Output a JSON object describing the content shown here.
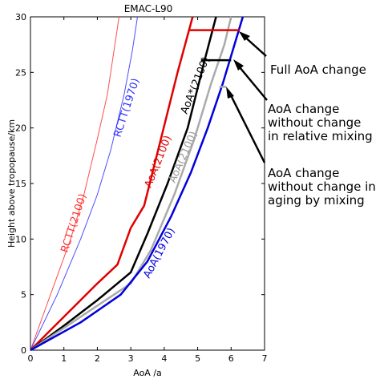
{
  "chart_data": {
    "type": "line",
    "title": "EMAC-L90",
    "xlabel": "AoA /a",
    "ylabel": "Height above tropopause/km",
    "xlim": [
      0,
      7
    ],
    "ylim": [
      0,
      30
    ],
    "xticks": [
      "0",
      "1",
      "2",
      "3",
      "4",
      "5",
      "6",
      "7"
    ],
    "yticks": [
      "0",
      "5",
      "10",
      "15",
      "20",
      "25",
      "30"
    ],
    "grid": false,
    "series": [
      {
        "name": "RCTT(2100)",
        "color": "#ff4d4d",
        "width": 1,
        "x": [
          0,
          0.6,
          1.2,
          1.6,
          2.0,
          2.3,
          2.5,
          2.65
        ],
        "y": [
          0,
          5,
          10,
          14,
          19,
          23,
          27,
          30
        ]
      },
      {
        "name": "RCTT(1970)",
        "color": "#4d4dff",
        "width": 1,
        "x": [
          0,
          0.8,
          1.5,
          2.0,
          2.4,
          2.8,
          3.05,
          3.2
        ],
        "y": [
          0,
          5,
          10,
          14,
          18,
          23,
          27,
          30
        ]
      },
      {
        "name": "AoA(2100)",
        "color": "#e00000",
        "width": 2.5,
        "x": [
          0,
          1,
          2,
          2.6,
          3,
          3.4,
          3.9,
          4.4,
          4.85
        ],
        "y": [
          0,
          3,
          6,
          7.7,
          11,
          13,
          19,
          25,
          30
        ]
      },
      {
        "name": "AoA*(2100)",
        "color": "#000000",
        "width": 2.5,
        "x": [
          0,
          1,
          2,
          3,
          3.5,
          4.1,
          4.7,
          5.2,
          5.55
        ],
        "y": [
          0,
          2.2,
          4.5,
          7,
          10.5,
          15,
          20,
          26,
          30
        ]
      },
      {
        "name": "AoA(2100)",
        "color": "#aaaaaa",
        "width": 2.5,
        "x": [
          0,
          1,
          2,
          3,
          3.6,
          4.3,
          4.9,
          5.4,
          5.8,
          6.0
        ],
        "y": [
          0,
          2,
          4,
          6,
          9,
          14,
          19,
          24,
          27.5,
          30
        ]
      },
      {
        "name": "AoA(1970)",
        "color": "#0000dd",
        "width": 2.5,
        "x": [
          0,
          1.5,
          2.7,
          3.5,
          4.2,
          4.8,
          5.3,
          5.75,
          6.05,
          6.35
        ],
        "y": [
          0,
          2.5,
          5,
          8,
          12,
          16,
          20,
          24,
          27,
          30
        ]
      }
    ],
    "connectors": [
      {
        "y": 28.8,
        "x1": 4.75,
        "x2": 6.25,
        "color": "#e00000"
      },
      {
        "y": 26.1,
        "x1": 5.1,
        "x2": 6.0,
        "color": "#000000"
      },
      {
        "y": 23.7,
        "x1": 5.65,
        "x2": 5.85,
        "color": "#aaaaaa"
      }
    ],
    "annotations": [
      {
        "lines": [
          "Full AoA change"
        ]
      },
      {
        "lines": [
          "AoA change",
          "without change",
          "in relative mixing"
        ]
      },
      {
        "lines": [
          "AoA change",
          "without change in",
          "aging by mixing"
        ]
      }
    ]
  }
}
